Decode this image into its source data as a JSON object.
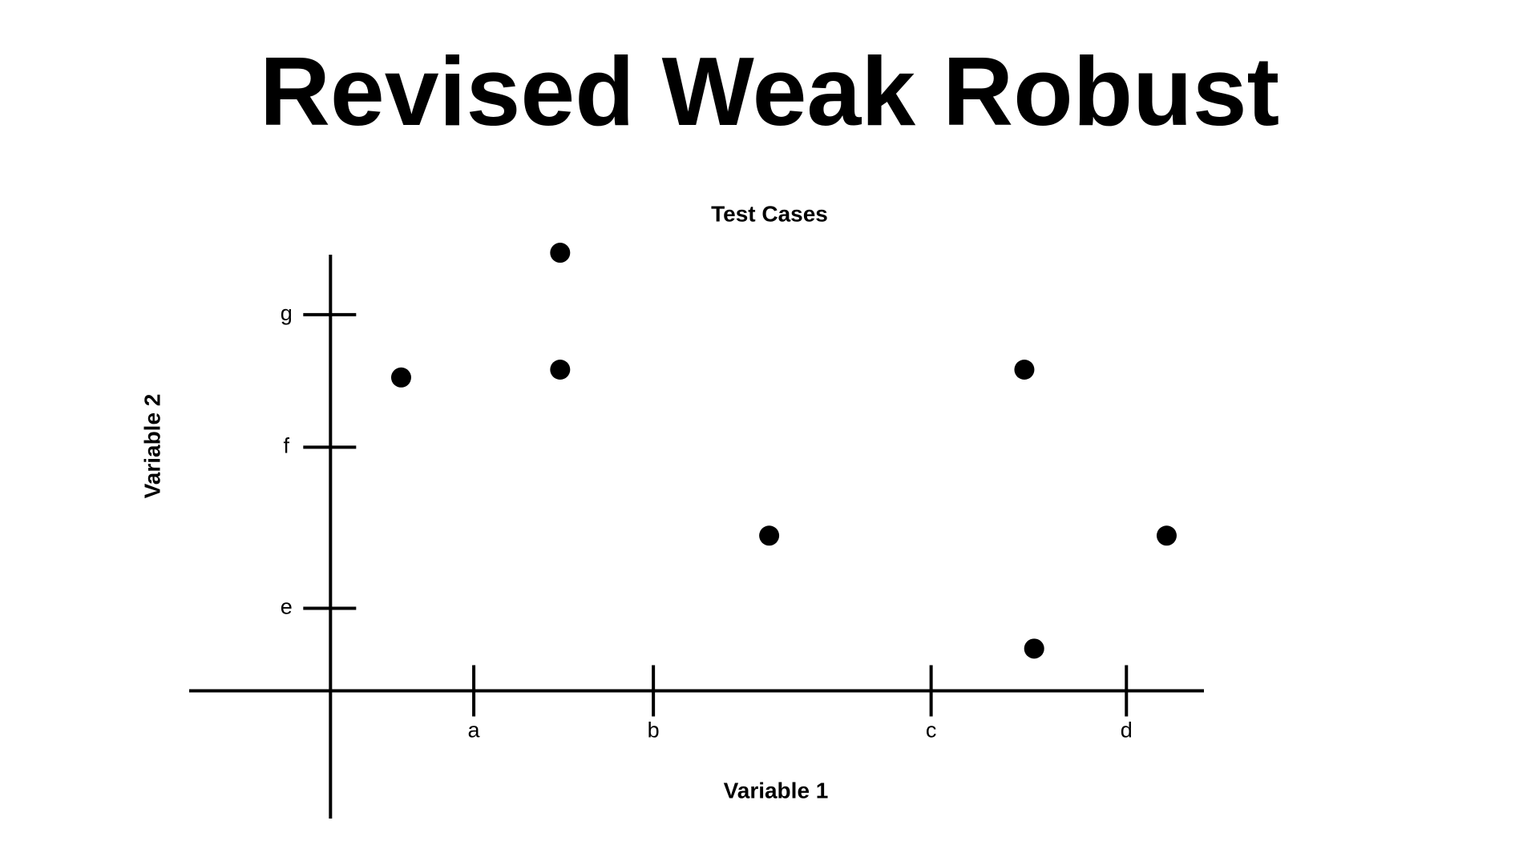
{
  "slide_title": "Revised Weak Robust",
  "chart_data": {
    "type": "scatter",
    "title": "Test Cases",
    "x_label": "Variable 1",
    "y_label": "Variable 2",
    "x": [
      0.72,
      2.34,
      2.34,
      4.47,
      7.07,
      7.17,
      8.52
    ],
    "values": [
      3.19,
      4.46,
      3.27,
      1.58,
      3.27,
      0.43,
      1.58
    ],
    "color": "#000000",
    "xlim": [
      -1.44,
      8.9
    ],
    "ylim": [
      -1.3,
      4.44
    ],
    "xticks": [
      {
        "value": 1.46,
        "label": "a"
      },
      {
        "value": 3.29,
        "label": "b"
      },
      {
        "value": 6.12,
        "label": "c"
      },
      {
        "value": 8.11,
        "label": "d"
      }
    ],
    "yticks": [
      {
        "value": 0.84,
        "label": "e"
      },
      {
        "value": 2.48,
        "label": "f"
      },
      {
        "value": 3.83,
        "label": "g"
      }
    ],
    "grid": false
  }
}
